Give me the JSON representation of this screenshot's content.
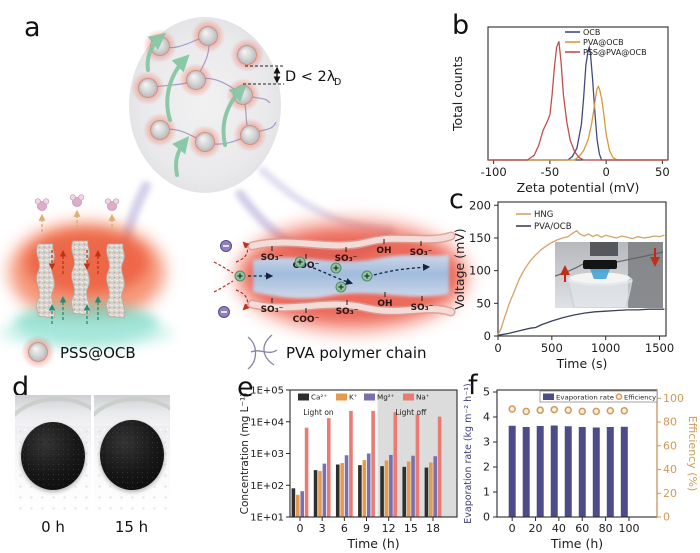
{
  "panel_labels": {
    "a": "a",
    "b": "b",
    "c": "c",
    "d": "d",
    "e": "e",
    "f": "f"
  },
  "panel_a": {
    "annotation": {
      "main": "D < 2λ",
      "sub": "D"
    },
    "channel_top": [
      "SO₃⁻",
      "COO⁻",
      "SO₃⁻",
      "OH",
      "SO₃⁻"
    ],
    "channel_bottom": [
      "SO₃⁻",
      "COO⁻",
      "SO₃⁻",
      "OH",
      "SO₃⁻"
    ],
    "legend": [
      {
        "label": "PSS@OCB"
      },
      {
        "label": "PVA polymer chain"
      }
    ]
  },
  "panel_d": {
    "labels": [
      "0 h",
      "15 h"
    ]
  },
  "colors": {
    "accent_navy": "#3f4d7e",
    "accent_tan": "#d2a469",
    "accent_red": "#c0504d",
    "shade_gray": "#dcdcdc",
    "glow_red": "#e8482a",
    "glow_teal": "#6fd4c0",
    "beam_purple": "#aaa0d4"
  },
  "chart_data": [
    {
      "id": "b",
      "type": "line",
      "title": "",
      "xlabel": "Zeta potential (mV)",
      "ylabel": "Total counts",
      "xlim": [
        -105,
        55
      ],
      "xticks": [
        -100,
        -50,
        0,
        50
      ],
      "ylim": [
        0,
        1.12
      ],
      "grid": false,
      "legend_position": "top-right",
      "series": [
        {
          "name": "OCB",
          "color": "#3f4d7e",
          "x": [
            -105,
            -34,
            -30,
            -26,
            -22,
            -20,
            -18,
            -16,
            -15,
            -14,
            -12,
            -10,
            -8,
            -6,
            -4,
            55
          ],
          "y": [
            0,
            0,
            0.03,
            0.1,
            0.3,
            0.52,
            0.8,
            0.92,
            0.95,
            0.9,
            0.68,
            0.4,
            0.17,
            0.05,
            0,
            0
          ]
        },
        {
          "name": "PVA@OCB",
          "color": "#d9973f",
          "x": [
            -105,
            -28,
            -24,
            -20,
            -16,
            -13,
            -11,
            -9,
            -8,
            -7,
            -6,
            -4,
            -2,
            0,
            3,
            6,
            10,
            55
          ],
          "y": [
            0,
            0,
            0.03,
            0.08,
            0.17,
            0.3,
            0.42,
            0.55,
            0.6,
            0.62,
            0.6,
            0.52,
            0.38,
            0.22,
            0.08,
            0.02,
            0,
            0
          ]
        },
        {
          "name": "PSS@PVA@OCB",
          "color": "#c0504d",
          "x": [
            -105,
            -70,
            -64,
            -60,
            -56,
            -52,
            -50,
            -48,
            -46,
            -44,
            -42,
            -40,
            -38,
            -35,
            -32,
            -28,
            -24,
            -20,
            55
          ],
          "y": [
            0,
            0,
            0.04,
            0.12,
            0.25,
            0.33,
            0.38,
            0.55,
            0.78,
            0.95,
            1.0,
            0.82,
            0.55,
            0.32,
            0.17,
            0.07,
            0.02,
            0,
            0
          ]
        }
      ]
    },
    {
      "id": "c",
      "type": "line",
      "title": "",
      "xlabel": "Time (s)",
      "ylabel": "Voltage (mV)",
      "xlim": [
        0,
        1560
      ],
      "xticks": [
        0,
        500,
        1000,
        1500
      ],
      "ylim": [
        0,
        205
      ],
      "yticks": [
        0,
        50,
        100,
        150,
        200
      ],
      "grid": false,
      "legend_position": "top-left",
      "series": [
        {
          "name": "HNG",
          "color": "#d2a469",
          "x": [
            0,
            30,
            60,
            100,
            150,
            200,
            250,
            300,
            350,
            400,
            450,
            500,
            550,
            600,
            650,
            700,
            730,
            760,
            800,
            840,
            880,
            920,
            960,
            1000,
            1050,
            1100,
            1150,
            1200,
            1250,
            1300,
            1350,
            1400,
            1450,
            1500,
            1545
          ],
          "y": [
            2,
            12,
            28,
            48,
            68,
            88,
            103,
            115,
            124,
            132,
            138,
            143,
            147,
            150,
            152,
            158,
            161,
            156,
            153,
            156,
            152,
            155,
            151,
            154,
            152,
            150,
            153,
            151,
            149,
            152,
            150,
            151,
            153,
            152,
            154
          ]
        },
        {
          "name": "PVA/OCB",
          "color": "#3b415f",
          "x": [
            0,
            100,
            200,
            300,
            350,
            400,
            500,
            600,
            700,
            800,
            900,
            1000,
            1100,
            1200,
            1300,
            1400,
            1500,
            1545
          ],
          "y": [
            1,
            4,
            8,
            12,
            13,
            17,
            23,
            28,
            32,
            35,
            37,
            38,
            39,
            40,
            40,
            41,
            41,
            41
          ]
        }
      ]
    },
    {
      "id": "e",
      "type": "bar-log",
      "xlabel": "Time (h)",
      "ylabel": "Concentration (mg L⁻¹)",
      "categories": [
        0,
        3,
        6,
        9,
        12,
        15,
        18
      ],
      "yticks": [
        "1E+01",
        "1E+02",
        "1E+03",
        "1E+04",
        "1E+05"
      ],
      "ylim": [
        10,
        100000
      ],
      "light_on_label": "Light on",
      "light_off_label": "Light off",
      "shade_start_h": 10.5,
      "series": [
        {
          "name": "Ca²⁺",
          "color": "#2f2f2f",
          "values": [
            80,
            300,
            450,
            430,
            400,
            380,
            360
          ]
        },
        {
          "name": "K⁺",
          "color": "#e59a4e",
          "values": [
            50,
            280,
            500,
            620,
            600,
            560,
            520
          ]
        },
        {
          "name": "Mg²⁺",
          "color": "#7b6fae",
          "values": [
            65,
            480,
            880,
            1000,
            900,
            850,
            820
          ]
        },
        {
          "name": "Na⁺",
          "color": "#e97b72",
          "values": [
            6500,
            13000,
            22000,
            22000,
            20000,
            17000,
            14500
          ]
        }
      ]
    },
    {
      "id": "f",
      "type": "bar-scatter",
      "xlabel": "Time (h)",
      "ylabel_left": "Evaporation rate (kg m⁻² h⁻¹)",
      "ylabel_right": "Efficiency (%)",
      "xlim": [
        -13,
        124
      ],
      "xticks": [
        0,
        20,
        40,
        60,
        80,
        100
      ],
      "ylim_left": [
        0,
        5
      ],
      "yticks_left": [
        0,
        1,
        2,
        3,
        4,
        5
      ],
      "ylim_right": [
        0,
        100
      ],
      "yticks_right": [
        0,
        20,
        40,
        60,
        80,
        100
      ],
      "x": [
        0,
        12,
        24,
        36,
        48,
        60,
        72,
        84,
        96
      ],
      "evaporation_rate": [
        3.65,
        3.6,
        3.64,
        3.66,
        3.63,
        3.6,
        3.58,
        3.6,
        3.61
      ],
      "efficiency": [
        91,
        89,
        90,
        90.5,
        90,
        89,
        89,
        89.5,
        89.5
      ],
      "bar_color": "#4c4c8a",
      "scatter_color": "#cf9a5a",
      "legend": [
        "Evaporation rate",
        "Efficiency"
      ]
    }
  ]
}
